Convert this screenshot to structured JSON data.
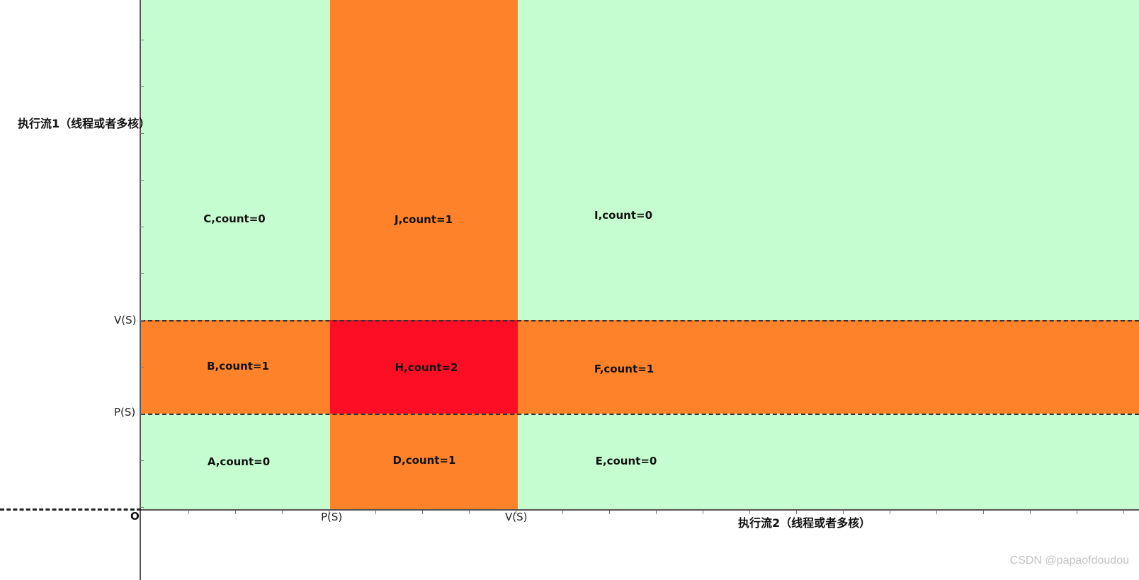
{
  "colors": {
    "zero": "#c5fdd0",
    "one": "#fe822a",
    "two": "#fe0e25"
  },
  "regions": [
    {
      "id": "A",
      "label": "A,count=0",
      "count": 0,
      "col": 0,
      "row": 0
    },
    {
      "id": "D",
      "label": "D,count=1",
      "count": 1,
      "col": 1,
      "row": 0
    },
    {
      "id": "E",
      "label": "E,count=0",
      "count": 0,
      "col": 2,
      "row": 0
    },
    {
      "id": "B",
      "label": "B,count=1",
      "count": 1,
      "col": 0,
      "row": 1
    },
    {
      "id": "H",
      "label": "H,count=2",
      "count": 2,
      "col": 1,
      "row": 1
    },
    {
      "id": "F",
      "label": "F,count=1",
      "count": 1,
      "col": 2,
      "row": 1
    },
    {
      "id": "C",
      "label": "C,count=0",
      "count": 0,
      "col": 0,
      "row": 2
    },
    {
      "id": "J",
      "label": "J,count=1",
      "count": 1,
      "col": 1,
      "row": 2
    },
    {
      "id": "I",
      "label": "I,count=0",
      "count": 0,
      "col": 2,
      "row": 2
    }
  ],
  "axes": {
    "y_title": "执行流1（线程或者多核）",
    "x_title": "执行流2（线程或者多核）",
    "origin": "O",
    "y_ticks": [
      "P(S)",
      "V(S)"
    ],
    "x_ticks": [
      "P(S)",
      "V(S)"
    ]
  },
  "watermark": "CSDN @papaofdoudou"
}
